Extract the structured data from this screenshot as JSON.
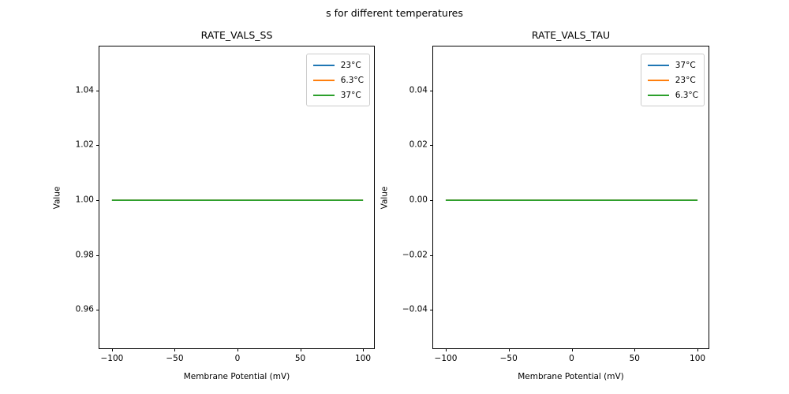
{
  "suptitle": "s for different temperatures",
  "background_color": "#ffffff",
  "spine_color": "#000000",
  "chart_data": [
    {
      "type": "line",
      "title": "RATE_VALS_SS",
      "xlabel": "Membrane Potential (mV)",
      "ylabel": "Value",
      "xlim": [
        -110,
        110
      ],
      "ylim": [
        0.9455,
        1.056
      ],
      "xticks": [
        -100,
        -50,
        0,
        50,
        100
      ],
      "xticklabels": [
        "−100",
        "−50",
        "0",
        "50",
        "100"
      ],
      "yticks": [
        0.96,
        0.98,
        1.0,
        1.02,
        1.04
      ],
      "yticklabels": [
        "0.96",
        "0.98",
        "1.00",
        "1.02",
        "1.04"
      ],
      "grid": false,
      "legend_position": "upper right",
      "x": [
        -100,
        100
      ],
      "series": [
        {
          "name": "23°C",
          "color": "#1f77b4",
          "values": [
            1.0,
            1.0
          ]
        },
        {
          "name": "6.3°C",
          "color": "#ff7f0e",
          "values": [
            1.0,
            1.0
          ]
        },
        {
          "name": "37°C",
          "color": "#2ca02c",
          "values": [
            1.0,
            1.0
          ]
        }
      ]
    },
    {
      "type": "line",
      "title": "RATE_VALS_TAU",
      "xlabel": "Membrane Potential (mV)",
      "ylabel": "Value",
      "xlim": [
        -110,
        110
      ],
      "ylim": [
        -0.0545,
        0.056
      ],
      "xticks": [
        -100,
        -50,
        0,
        50,
        100
      ],
      "xticklabels": [
        "−100",
        "−50",
        "0",
        "50",
        "100"
      ],
      "yticks": [
        -0.04,
        -0.02,
        0.0,
        0.02,
        0.04
      ],
      "yticklabels": [
        "−0.04",
        "−0.02",
        "0.00",
        "0.02",
        "0.04"
      ],
      "grid": false,
      "legend_position": "upper right",
      "x": [
        -100,
        100
      ],
      "series": [
        {
          "name": "37°C",
          "color": "#1f77b4",
          "values": [
            0.0,
            0.0
          ]
        },
        {
          "name": "23°C",
          "color": "#ff7f0e",
          "values": [
            0.0,
            0.0
          ]
        },
        {
          "name": "6.3°C",
          "color": "#2ca02c",
          "values": [
            0.0,
            0.0
          ]
        }
      ]
    }
  ]
}
